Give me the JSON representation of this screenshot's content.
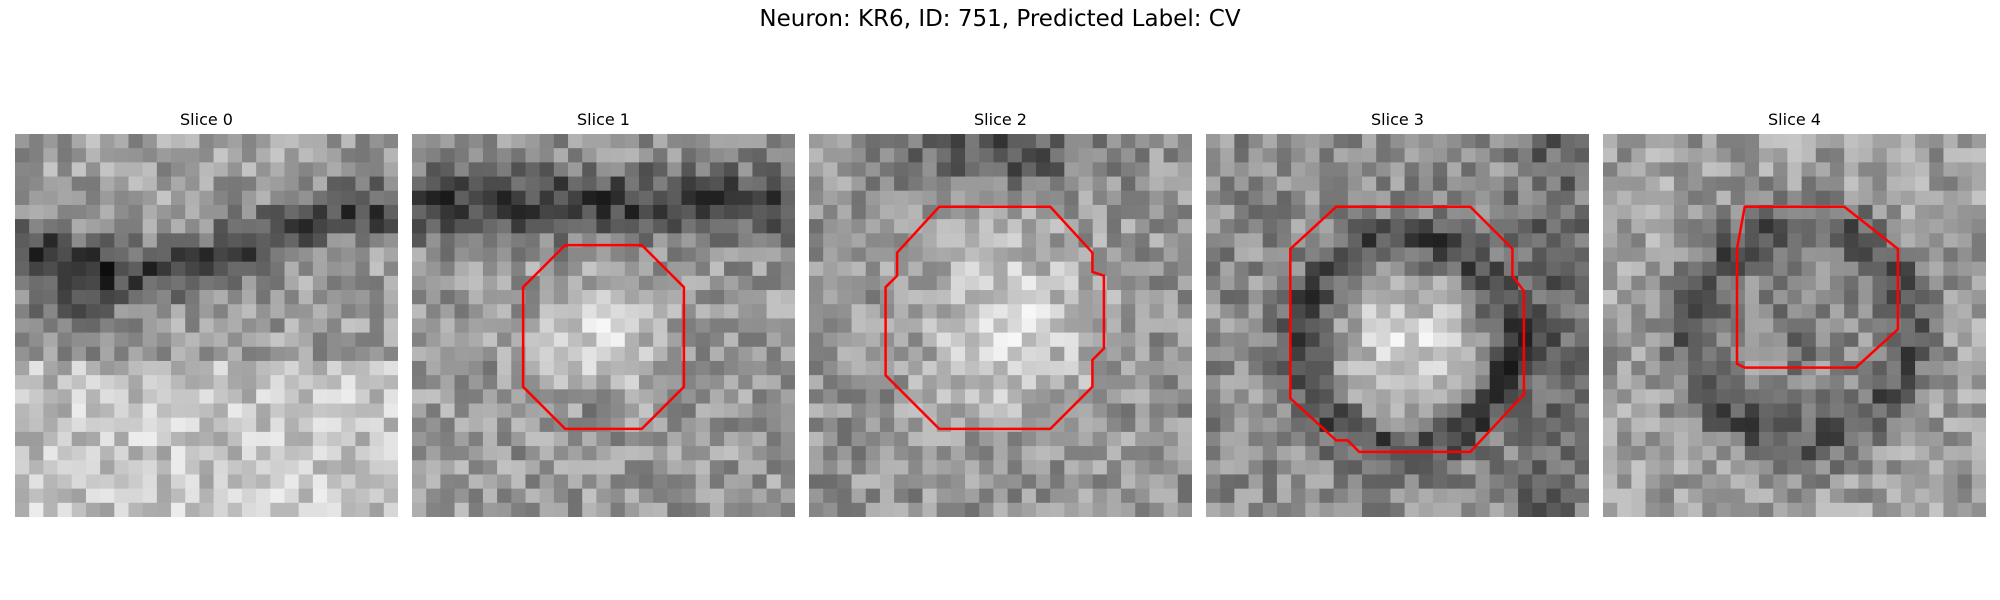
{
  "figure": {
    "title": "Neuron: KR6, ID: 751, Predicted Label: CV"
  },
  "panels": [
    {
      "title": "Slice 0",
      "has_contour": false
    },
    {
      "title": "Slice 1",
      "has_contour": true
    },
    {
      "title": "Slice 2",
      "has_contour": true
    },
    {
      "title": "Slice 3",
      "has_contour": true
    },
    {
      "title": "Slice 4",
      "has_contour": true
    }
  ],
  "colors": {
    "contour": "#ff0000",
    "colormap": "gray"
  },
  "icons": {
    "image": "grayscale-microscopy-image",
    "contour": "red-polygon-contour"
  }
}
